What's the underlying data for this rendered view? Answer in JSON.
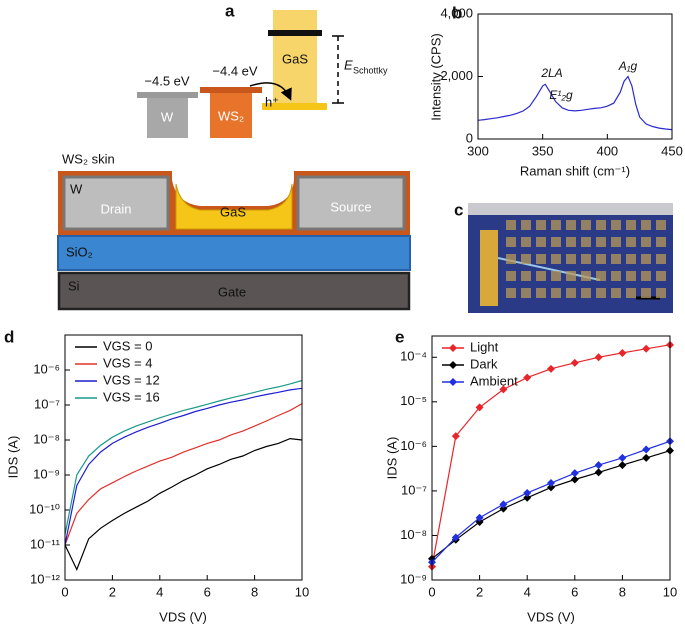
{
  "diagram": {
    "panel": "a",
    "levels": {
      "w_energy": "−4.5 eV",
      "ws2_energy": "−4.4 eV",
      "w": "W",
      "ws2": "WS₂",
      "gas": "GaS",
      "hole": "h⁺",
      "e_schottky": "E",
      "e_schottky_sub": "Schottky"
    },
    "device": {
      "skin": "WS₂ skin",
      "metal": "W",
      "drain": "Drain",
      "channel": "GaS",
      "source": "Source",
      "oxide": "SiO₂",
      "substrate": "Si",
      "gate": "Gate"
    }
  },
  "photo": {
    "panel": "c"
  },
  "chart_data": [
    {
      "type": "line",
      "panel": "b",
      "xlabel": "Raman shift (cm⁻¹)",
      "ylabel": "Intensity (CPS)",
      "x": [
        300,
        305,
        310,
        315,
        320,
        325,
        330,
        335,
        340,
        345,
        350,
        352,
        355,
        360,
        365,
        370,
        375,
        380,
        385,
        390,
        395,
        400,
        405,
        410,
        413,
        416,
        419,
        422,
        425,
        430,
        435,
        440,
        445,
        450
      ],
      "series": [
        {
          "color": "#2a2ad0",
          "values": [
            600,
            620,
            650,
            680,
            720,
            760,
            820,
            900,
            1050,
            1350,
            1700,
            1750,
            1550,
            1200,
            1000,
            920,
            900,
            920,
            950,
            980,
            1000,
            1050,
            1150,
            1500,
            1850,
            2000,
            1700,
            1100,
            700,
            480,
            400,
            350,
            320,
            300
          ]
        }
      ],
      "annotations": [
        "2LA",
        "E¹₂g",
        "A₁g"
      ],
      "xlim": [
        300,
        450
      ],
      "xticks": [
        300,
        350,
        400,
        450
      ],
      "ylim": [
        0,
        4000
      ],
      "yticks": [
        0,
        {
          "value": 2000,
          "label": "2,000"
        },
        {
          "value": 4000,
          "label": "4,000"
        }
      ]
    },
    {
      "type": "line",
      "panel": "d",
      "xlabel": "VDS (V)",
      "ylabel": "IDS (A)",
      "log_y": true,
      "legend": "upper left",
      "x": [
        0,
        0.5,
        1,
        1.5,
        2,
        2.5,
        3,
        3.5,
        4,
        4.5,
        5,
        5.5,
        6,
        6.5,
        7,
        7.5,
        8,
        8.5,
        9,
        9.5,
        10
      ],
      "series": [
        {
          "name": "VGS = 0",
          "color": "#000000",
          "values": [
            1e-11,
            2e-12,
            1.5e-11,
            3e-11,
            5e-11,
            8e-11,
            1.2e-10,
            1.8e-10,
            3e-10,
            4.5e-10,
            7e-10,
            1e-09,
            1.5e-09,
            2e-09,
            2.8e-09,
            3.5e-09,
            5e-09,
            6.5e-09,
            8e-09,
            1.1e-08,
            1e-08
          ]
        },
        {
          "name": "VGS = 4",
          "color": "#e0302a",
          "values": [
            1e-11,
            8e-11,
            2e-10,
            4e-10,
            6e-10,
            9e-10,
            1.3e-09,
            1.8e-09,
            2.5e-09,
            3.2e-09,
            4.5e-09,
            6e-09,
            8e-09,
            1e-08,
            1.4e-08,
            1.8e-08,
            2.5e-08,
            3.5e-08,
            5e-08,
            7e-08,
            1.1e-07
          ]
        },
        {
          "name": "VGS = 12",
          "color": "#1f1fd0",
          "values": [
            1e-11,
            5e-10,
            2e-09,
            4.5e-09,
            8e-09,
            1.2e-08,
            1.7e-08,
            2.3e-08,
            3e-08,
            4e-08,
            5e-08,
            6.5e-08,
            8e-08,
            1e-07,
            1.2e-07,
            1.4e-07,
            1.7e-07,
            2e-07,
            2.3e-07,
            2.7e-07,
            3e-07
          ]
        },
        {
          "name": "VGS = 16",
          "color": "#1a9a8a",
          "values": [
            2e-11,
            1e-09,
            3.5e-09,
            7e-09,
            1.2e-08,
            1.8e-08,
            2.5e-08,
            3.3e-08,
            4.3e-08,
            5.5e-08,
            7e-08,
            8.5e-08,
            1.05e-07,
            1.3e-07,
            1.6e-07,
            1.9e-07,
            2.3e-07,
            2.8e-07,
            3.3e-07,
            4e-07,
            5e-07
          ]
        }
      ],
      "xlim": [
        0,
        10
      ],
      "xticks": [
        0,
        2,
        4,
        6,
        8,
        10
      ],
      "ylim": [
        1e-12,
        1e-05
      ],
      "yticks": [
        {
          "value": 1e-12,
          "label": "10⁻¹²"
        },
        {
          "value": 1e-11,
          "label": "10⁻¹¹"
        },
        {
          "value": 1e-10,
          "label": "10⁻¹⁰"
        },
        {
          "value": 1e-09,
          "label": "10⁻⁹"
        },
        {
          "value": 1e-08,
          "label": "10⁻⁸"
        },
        {
          "value": 1e-07,
          "label": "10⁻⁷"
        },
        {
          "value": 1e-06,
          "label": "10⁻⁶"
        }
      ]
    },
    {
      "type": "line",
      "panel": "e",
      "xlabel": "VDS (V)",
      "ylabel": "IDS (A)",
      "log_y": true,
      "legend": "upper left",
      "marker": "diamond",
      "x": [
        0,
        1,
        2,
        3,
        4,
        5,
        6,
        7,
        8,
        9,
        10
      ],
      "series": [
        {
          "name": "Light",
          "color": "#e8252a",
          "values": [
            2e-09,
            1.7e-06,
            7.5e-06,
            1.9e-05,
            3.5e-05,
            5.5e-05,
            7.5e-05,
            0.0001,
            0.000125,
            0.000155,
            0.00019
          ]
        },
        {
          "name": "Dark",
          "color": "#000000",
          "values": [
            3e-09,
            8e-09,
            2e-08,
            4e-08,
            7e-08,
            1.2e-07,
            1.8e-07,
            2.6e-07,
            3.8e-07,
            5.5e-07,
            8e-07
          ]
        },
        {
          "name": "Ambient",
          "color": "#2030e0",
          "values": [
            2.5e-09,
            9e-09,
            2.5e-08,
            5e-08,
            9e-08,
            1.5e-07,
            2.5e-07,
            3.8e-07,
            5.5e-07,
            8.5e-07,
            1.3e-06
          ]
        }
      ],
      "xlim": [
        0,
        10
      ],
      "xticks": [
        0,
        2,
        4,
        6,
        8,
        10
      ],
      "ylim": [
        1e-09,
        0.0003
      ],
      "yticks": [
        {
          "value": 1e-09,
          "label": "10⁻⁹"
        },
        {
          "value": 1e-08,
          "label": "10⁻⁸"
        },
        {
          "value": 1e-07,
          "label": "10⁻⁷"
        },
        {
          "value": 1e-06,
          "label": "10⁻⁶"
        },
        {
          "value": 1e-05,
          "label": "10⁻⁵"
        },
        {
          "value": 0.0001,
          "label": "10⁻⁴"
        }
      ]
    }
  ]
}
